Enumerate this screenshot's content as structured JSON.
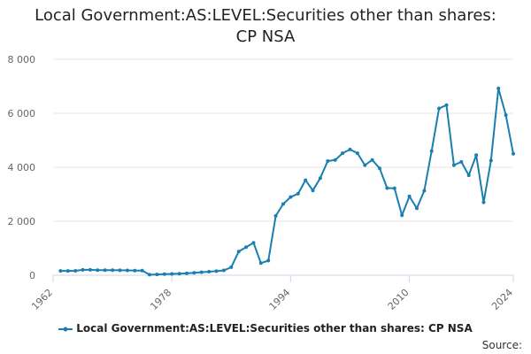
{
  "chart_data": {
    "type": "line",
    "title_line1": "Local Government:AS:LEVEL:Securities other than shares:",
    "title_line2": "CP NSA",
    "xlabel": "",
    "ylabel": "",
    "xlim": [
      1962,
      2024
    ],
    "ylim": [
      0,
      8000
    ],
    "x_ticks": [
      1962,
      1978,
      1994,
      2010,
      2024
    ],
    "y_ticks": [
      0,
      2000,
      4000,
      6000,
      8000
    ],
    "y_tick_labels": [
      "0",
      "2 000",
      "4 000",
      "6 000",
      "8 000"
    ],
    "grid": true,
    "legend_position": "bottom",
    "series": [
      {
        "name": "Local Government:AS:LEVEL:Securities other than shares: CP NSA",
        "color": "#1a7fb0",
        "x": [
          1963,
          1964,
          1965,
          1966,
          1967,
          1968,
          1969,
          1970,
          1971,
          1972,
          1973,
          1974,
          1975,
          1976,
          1977,
          1978,
          1979,
          1980,
          1981,
          1982,
          1983,
          1984,
          1985,
          1986,
          1987,
          1988,
          1989,
          1990,
          1991,
          1992,
          1993,
          1994,
          1995,
          1996,
          1997,
          1998,
          1999,
          2000,
          2001,
          2002,
          2003,
          2004,
          2005,
          2006,
          2007,
          2008,
          2009,
          2010,
          2011,
          2012,
          2013,
          2014,
          2015,
          2016,
          2017,
          2018,
          2019,
          2020,
          2021,
          2022,
          2023,
          2024
        ],
        "values": [
          160,
          160,
          165,
          200,
          200,
          190,
          190,
          190,
          185,
          180,
          175,
          170,
          20,
          30,
          40,
          50,
          60,
          70,
          90,
          110,
          130,
          150,
          180,
          300,
          880,
          1040,
          1200,
          450,
          540,
          2200,
          2640,
          2900,
          3020,
          3520,
          3140,
          3600,
          4230,
          4270,
          4520,
          4660,
          4520,
          4080,
          4270,
          3960,
          3230,
          3220,
          2220,
          2920,
          2480,
          3130,
          4600,
          6180,
          6300,
          4080,
          4200,
          3700,
          4450,
          2700,
          4250,
          6920,
          5930,
          4500
        ]
      }
    ]
  },
  "source_label": "Source:"
}
